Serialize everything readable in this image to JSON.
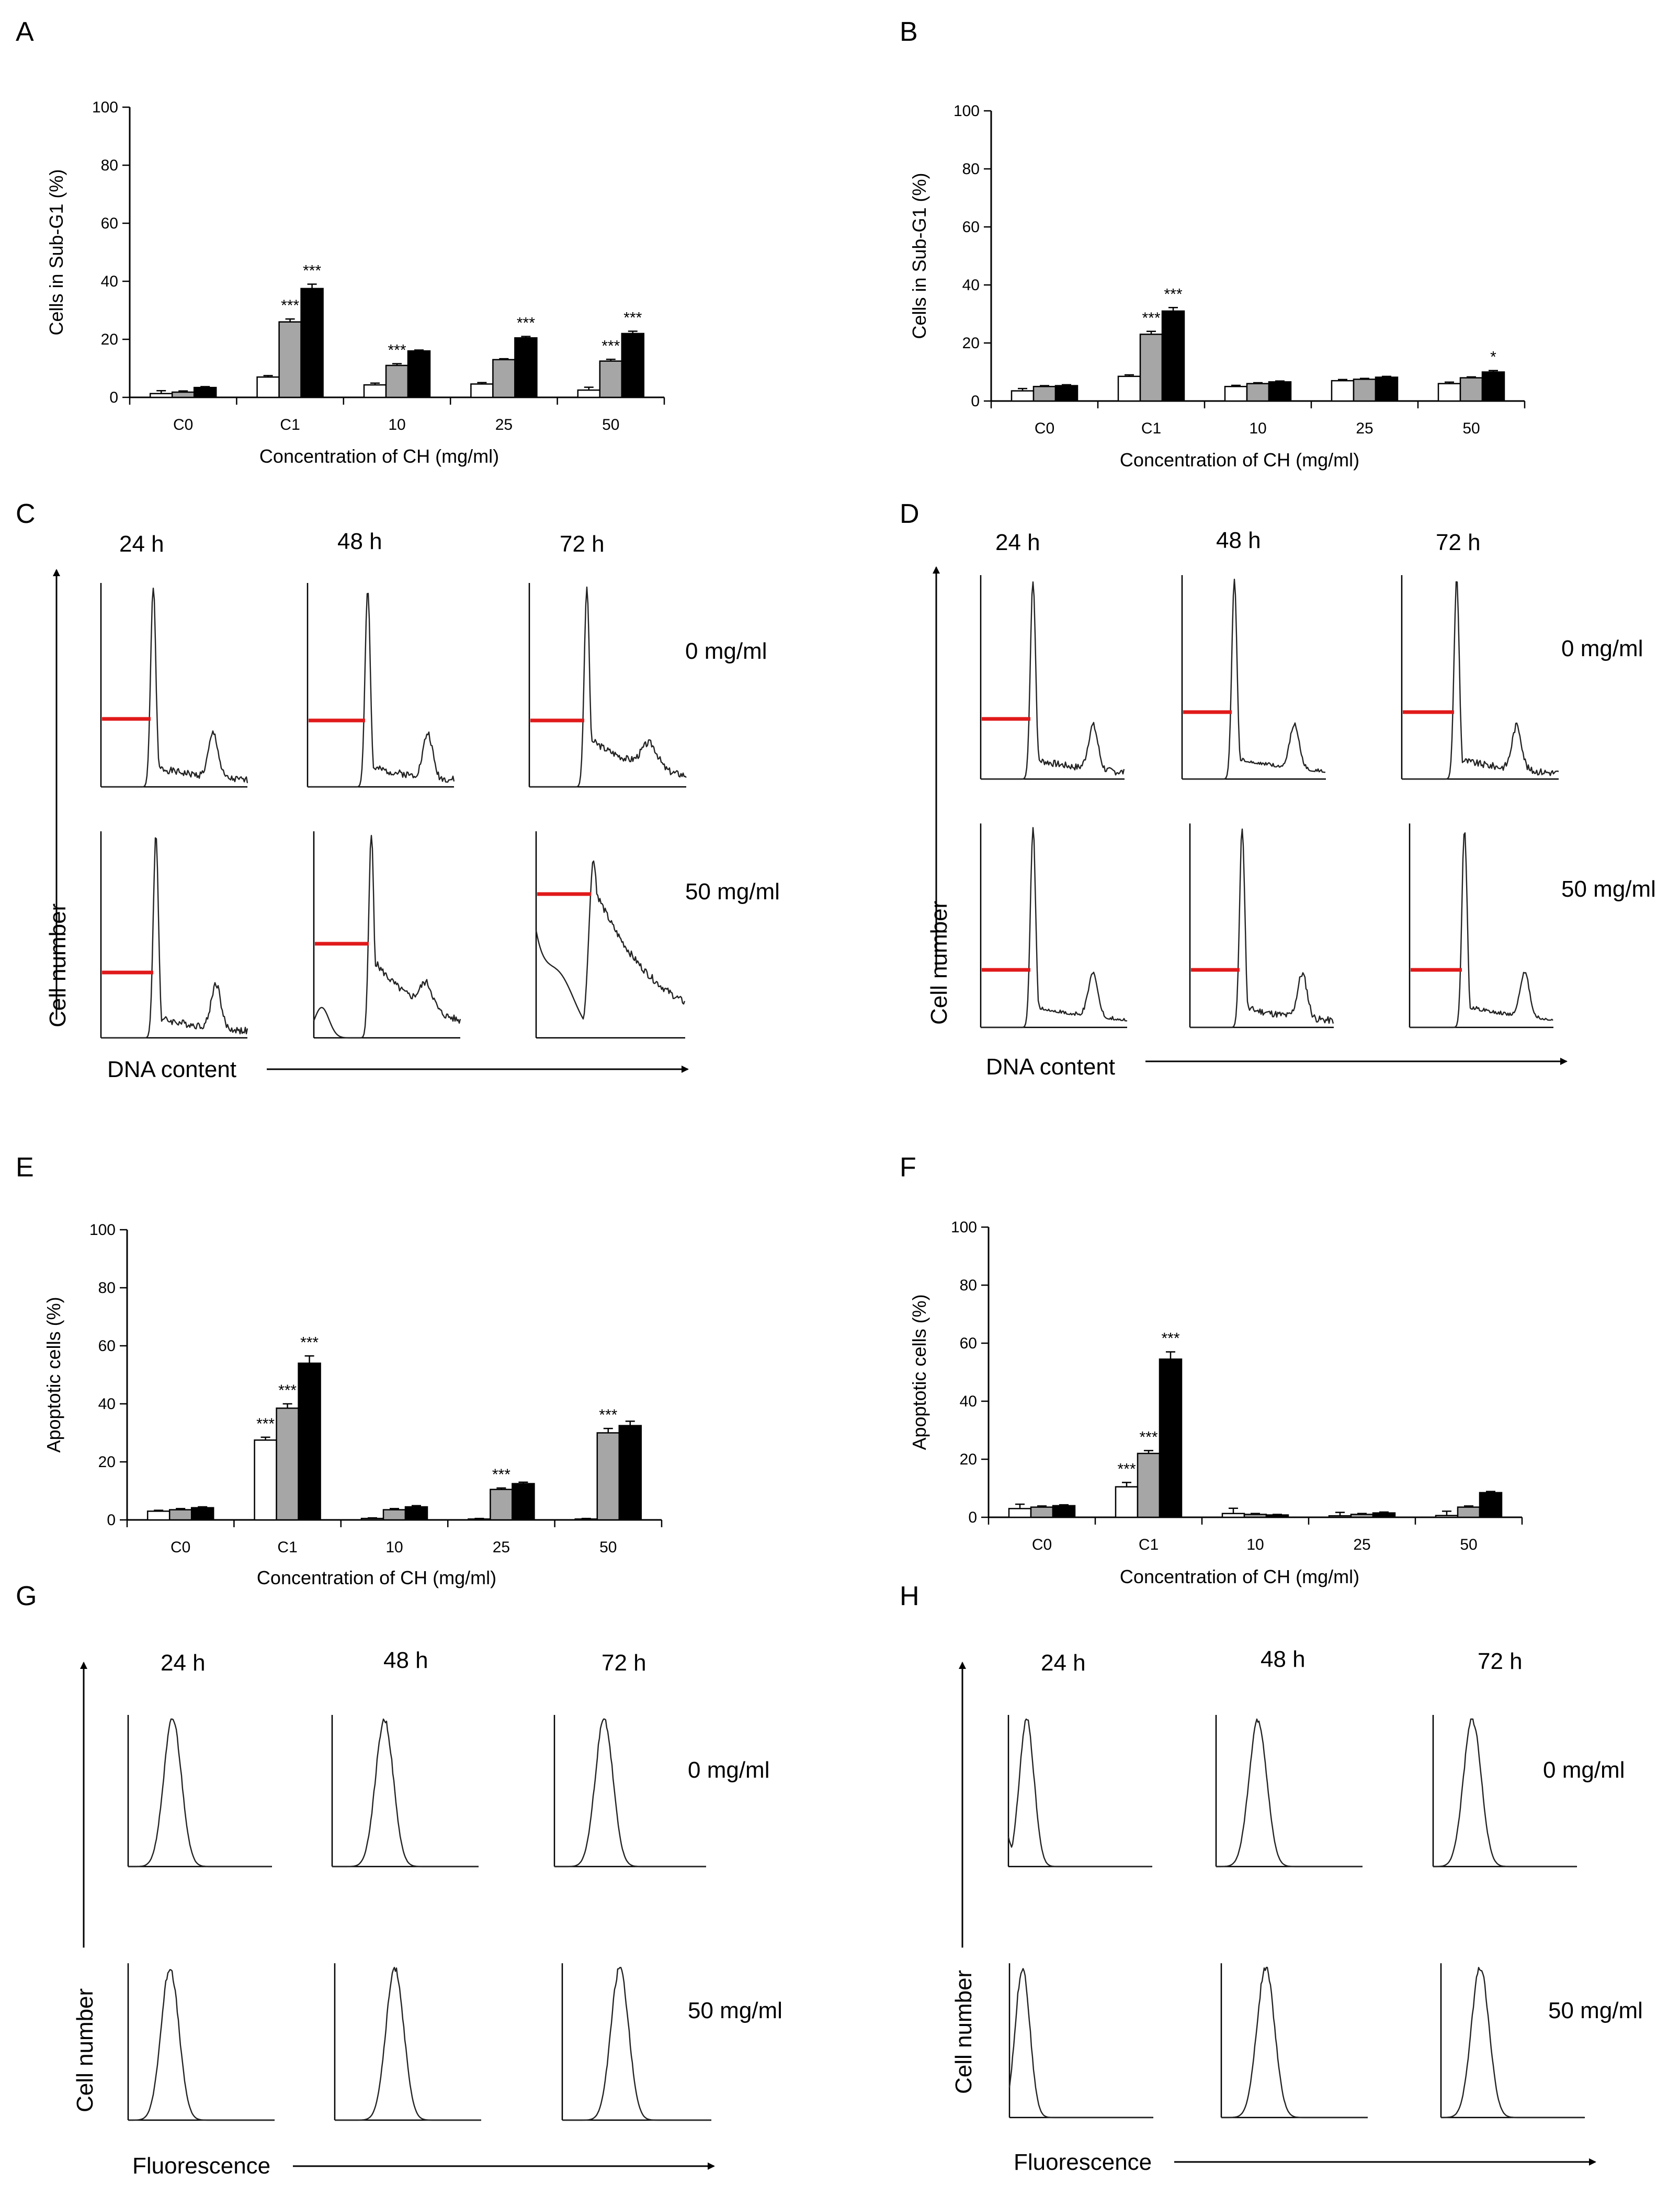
{
  "colors": {
    "white_bar": "#ffffff",
    "gray_bar": "#a6a6a6",
    "black_bar": "#000000",
    "gate_line": "#e0191a"
  },
  "panels": {
    "A": "A",
    "B": "B",
    "C": "C",
    "D": "D",
    "E": "E",
    "F": "F",
    "G": "G",
    "H": "H"
  },
  "histogram_labels": {
    "times": [
      "24 h",
      "48 h",
      "72 h"
    ],
    "doses": [
      "0 mg/ml",
      "50 mg/ml"
    ],
    "cell_number": "Cell number",
    "dna_content": "DNA content",
    "fluorescence": "Fluorescence"
  },
  "chart_data": [
    {
      "panel": "A",
      "type": "bar",
      "categories": [
        "C0",
        "C1",
        "10",
        "25",
        "50"
      ],
      "series": [
        {
          "name": "24 h",
          "color": "#ffffff",
          "values": [
            1.3,
            7,
            4.3,
            4.6,
            2.5
          ],
          "errors": [
            1.0,
            0.5,
            0.6,
            0.5,
            1.0
          ]
        },
        {
          "name": "48 h",
          "color": "#a6a6a6",
          "values": [
            1.8,
            26,
            11,
            13,
            12.5
          ],
          "errors": [
            0.4,
            1.0,
            0.6,
            0.3,
            0.6
          ]
        },
        {
          "name": "72 h",
          "color": "#000000",
          "values": [
            3.4,
            37.5,
            16,
            20.5,
            22
          ],
          "errors": [
            0.3,
            1.5,
            0.3,
            0.5,
            0.8
          ]
        }
      ],
      "annotations": [
        [
          "",
          "",
          ""
        ],
        [
          "",
          "***",
          "***"
        ],
        [
          "",
          "***",
          ""
        ],
        [
          "",
          "",
          "***"
        ],
        [
          "",
          "***",
          "***"
        ]
      ],
      "ylabel": "Cells in Sub-G1 (%)",
      "xlabel": "Concentration of CH (mg/ml)",
      "ylim": [
        0,
        100
      ],
      "yticks": [
        0,
        20,
        40,
        60,
        80,
        100
      ]
    },
    {
      "panel": "B",
      "type": "bar",
      "categories": [
        "C0",
        "C1",
        "10",
        "25",
        "50"
      ],
      "series": [
        {
          "name": "24 h",
          "color": "#ffffff",
          "values": [
            3.5,
            8.5,
            5,
            7,
            6
          ],
          "errors": [
            0.8,
            0.5,
            0.4,
            0.4,
            0.5
          ]
        },
        {
          "name": "48 h",
          "color": "#a6a6a6",
          "values": [
            5,
            23,
            6,
            7.5,
            8
          ],
          "errors": [
            0.3,
            1.0,
            0.3,
            0.3,
            0.3
          ]
        },
        {
          "name": "72 h",
          "color": "#000000",
          "values": [
            5.3,
            31,
            6.6,
            8.2,
            10
          ],
          "errors": [
            0.3,
            1.2,
            0.3,
            0.3,
            0.5
          ]
        }
      ],
      "annotations": [
        [
          "",
          "",
          ""
        ],
        [
          "",
          "***",
          "***"
        ],
        [
          "",
          "",
          ""
        ],
        [
          "",
          "",
          ""
        ],
        [
          "",
          "",
          "*"
        ]
      ],
      "ylabel": "Cells in Sub-G1 (%)",
      "xlabel": "Concentration of CH (mg/ml)",
      "ylim": [
        0,
        100
      ],
      "yticks": [
        0,
        20,
        40,
        60,
        80,
        100
      ]
    },
    {
      "panel": "E",
      "type": "bar",
      "categories": [
        "C0",
        "C1",
        "10",
        "25",
        "50"
      ],
      "series": [
        {
          "name": "24 h",
          "color": "#ffffff",
          "values": [
            3,
            27.5,
            0.5,
            0.3,
            0.3
          ],
          "errors": [
            0.3,
            1.0,
            0.2,
            0.2,
            0.2
          ]
        },
        {
          "name": "48 h",
          "color": "#a6a6a6",
          "values": [
            3.5,
            38.5,
            3.5,
            10.5,
            30
          ],
          "errors": [
            0.4,
            1.5,
            0.4,
            0.5,
            1.5
          ]
        },
        {
          "name": "72 h",
          "color": "#000000",
          "values": [
            4.2,
            54,
            4.5,
            12.5,
            32.5
          ],
          "errors": [
            0.3,
            2.5,
            0.4,
            0.5,
            1.5
          ]
        }
      ],
      "annotations": [
        [
          "",
          "",
          ""
        ],
        [
          "***",
          "***",
          "***"
        ],
        [
          "",
          "",
          ""
        ],
        [
          "",
          "***",
          ""
        ],
        [
          "",
          "***",
          ""
        ]
      ],
      "ylabel": "Apoptotic cells (%)",
      "xlabel": "Concentration of CH (mg/ml)",
      "ylim": [
        0,
        100
      ],
      "yticks": [
        0,
        20,
        40,
        60,
        80,
        100
      ]
    },
    {
      "panel": "F",
      "type": "bar",
      "categories": [
        "C0",
        "C1",
        "10",
        "25",
        "50"
      ],
      "series": [
        {
          "name": "24 h",
          "color": "#ffffff",
          "values": [
            3,
            10.5,
            1.3,
            0.5,
            0.6
          ],
          "errors": [
            1.5,
            1.5,
            1.8,
            1.2,
            1.5
          ]
        },
        {
          "name": "48 h",
          "color": "#a6a6a6",
          "values": [
            3.5,
            22,
            1,
            1,
            3.5
          ],
          "errors": [
            0.4,
            1.0,
            0.3,
            0.3,
            0.4
          ]
        },
        {
          "name": "72 h",
          "color": "#000000",
          "values": [
            4,
            54.5,
            0.8,
            1.5,
            8.5
          ],
          "errors": [
            0.3,
            2.5,
            0.2,
            0.3,
            0.4
          ]
        }
      ],
      "annotations": [
        [
          "",
          "",
          ""
        ],
        [
          "***",
          "***",
          "***"
        ],
        [
          "",
          "",
          ""
        ],
        [
          "",
          "",
          ""
        ],
        [
          "",
          "",
          ""
        ]
      ],
      "ylabel": "Apoptotic cells (%)",
      "xlabel": "Concentration of CH (mg/ml)",
      "ylim": [
        0,
        100
      ],
      "yticks": [
        0,
        20,
        40,
        60,
        80,
        100
      ]
    }
  ]
}
